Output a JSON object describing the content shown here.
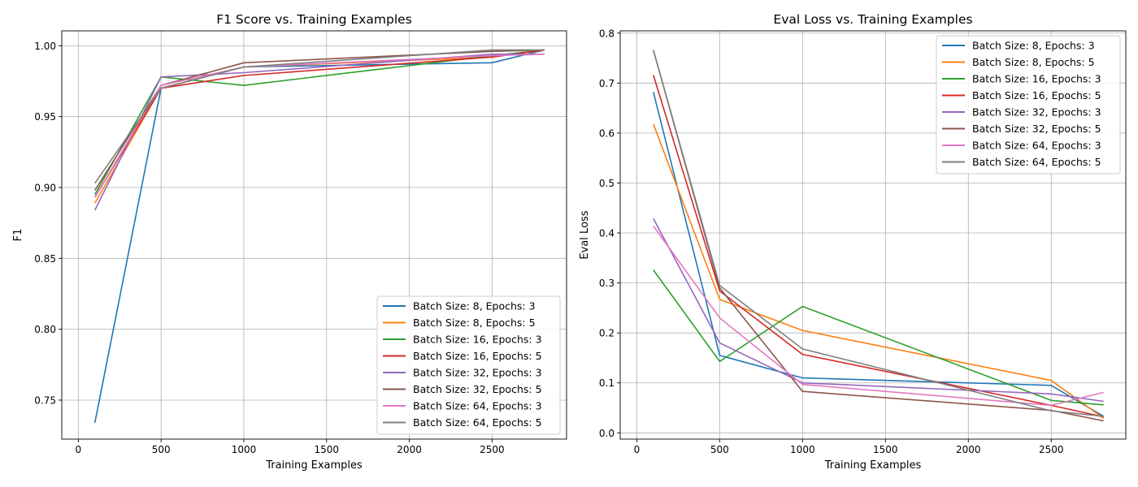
{
  "chart_data": [
    {
      "type": "line",
      "title": "F1 Score vs. Training Examples",
      "xlabel": "Training Examples",
      "ylabel": "F1",
      "xlim": [
        -100,
        2950
      ],
      "ylim": [
        0.7225,
        1.0105
      ],
      "xticks": [
        0,
        500,
        1000,
        1500,
        2000,
        2500
      ],
      "xtick_labels": [
        "0",
        "500",
        "1000",
        "1500",
        "2000",
        "2500"
      ],
      "yticks": [
        0.75,
        0.8,
        0.85,
        0.9,
        0.95,
        1.0
      ],
      "ytick_labels": [
        "0.75",
        "0.80",
        "0.85",
        "0.90",
        "0.95",
        "1.00"
      ],
      "grid": true,
      "legend_position": "lower-right",
      "x": [
        100,
        500,
        1000,
        2500,
        2816
      ],
      "series": [
        {
          "name": "Batch Size: 8, Epochs: 3",
          "color": "#1f77b4",
          "values": [
            0.734,
            0.97,
            0.985,
            0.988,
            0.997
          ]
        },
        {
          "name": "Batch Size: 8, Epochs: 5",
          "color": "#ff7f0e",
          "values": [
            0.889,
            0.97,
            0.985,
            0.992,
            0.997
          ]
        },
        {
          "name": "Batch Size: 16, Epochs: 3",
          "color": "#2ca02c",
          "values": [
            0.895,
            0.978,
            0.972,
            0.993,
            0.997
          ]
        },
        {
          "name": "Batch Size: 16, Epochs: 5",
          "color": "#d62728",
          "values": [
            0.893,
            0.97,
            0.979,
            0.992,
            0.997
          ]
        },
        {
          "name": "Batch Size: 32, Epochs: 3",
          "color": "#9467bd",
          "values": [
            0.884,
            0.978,
            0.981,
            0.994,
            0.994
          ]
        },
        {
          "name": "Batch Size: 32, Epochs: 5",
          "color": "#8c564b",
          "values": [
            0.898,
            0.972,
            0.988,
            0.996,
            0.997
          ]
        },
        {
          "name": "Batch Size: 64, Epochs: 3",
          "color": "#e377c2",
          "values": [
            0.893,
            0.972,
            0.985,
            0.993,
            0.994
          ]
        },
        {
          "name": "Batch Size: 64, Epochs: 5",
          "color": "#7f7f7f",
          "values": [
            0.903,
            0.97,
            0.985,
            0.997,
            0.997
          ]
        }
      ]
    },
    {
      "type": "line",
      "title": "Eval Loss vs. Training Examples",
      "xlabel": "Training Examples",
      "ylabel": "Eval Loss",
      "xlim": [
        -100,
        2950
      ],
      "ylim": [
        -0.0125,
        0.8045
      ],
      "xticks": [
        0,
        500,
        1000,
        1500,
        2000,
        2500
      ],
      "xtick_labels": [
        "0",
        "500",
        "1000",
        "1500",
        "2000",
        "2500"
      ],
      "yticks": [
        0.0,
        0.1,
        0.2,
        0.3,
        0.4,
        0.5,
        0.6,
        0.7,
        0.8
      ],
      "ytick_labels": [
        "0.0",
        "0.1",
        "0.2",
        "0.3",
        "0.4",
        "0.5",
        "0.6",
        "0.7",
        "0.8"
      ],
      "grid": true,
      "legend_position": "upper-right",
      "x": [
        100,
        500,
        1000,
        2500,
        2816
      ],
      "series": [
        {
          "name": "Batch Size: 8, Epochs: 3",
          "color": "#1f77b4",
          "values": [
            0.682,
            0.155,
            0.11,
            0.095,
            0.033
          ]
        },
        {
          "name": "Batch Size: 8, Epochs: 5",
          "color": "#ff7f0e",
          "values": [
            0.618,
            0.267,
            0.205,
            0.105,
            0.029
          ]
        },
        {
          "name": "Batch Size: 16, Epochs: 3",
          "color": "#2ca02c",
          "values": [
            0.326,
            0.143,
            0.253,
            0.065,
            0.056
          ]
        },
        {
          "name": "Batch Size: 16, Epochs: 5",
          "color": "#d62728",
          "values": [
            0.716,
            0.284,
            0.157,
            0.055,
            0.032
          ]
        },
        {
          "name": "Batch Size: 32, Epochs: 3",
          "color": "#9467bd",
          "values": [
            0.429,
            0.18,
            0.1,
            0.078,
            0.063
          ]
        },
        {
          "name": "Batch Size: 32, Epochs: 5",
          "color": "#8c564b",
          "values": [
            0.766,
            0.29,
            0.083,
            0.045,
            0.024
          ]
        },
        {
          "name": "Batch Size: 64, Epochs: 3",
          "color": "#e377c2",
          "values": [
            0.414,
            0.23,
            0.097,
            0.055,
            0.081
          ]
        },
        {
          "name": "Batch Size: 64, Epochs: 5",
          "color": "#7f7f7f",
          "values": [
            0.766,
            0.295,
            0.168,
            0.044,
            0.033
          ]
        }
      ]
    }
  ]
}
